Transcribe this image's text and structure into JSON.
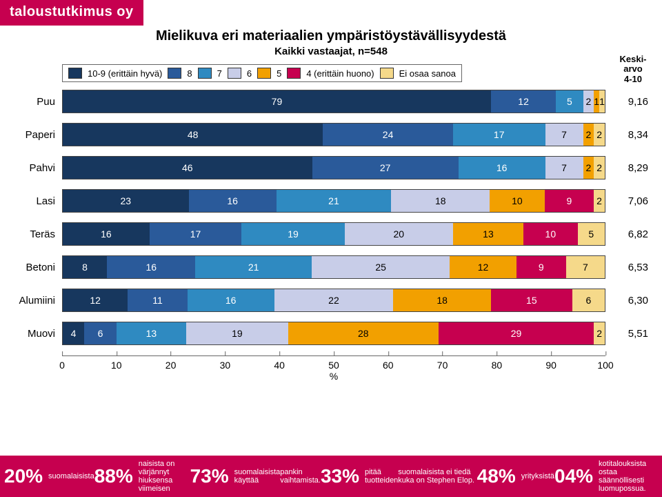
{
  "logo": "taloustutkimus oy",
  "title": "Mielikuva eri materiaalien ympäristöystävällisyydestä",
  "subtitle": "Kaikki vastaajat, n=548",
  "legend": {
    "items": [
      {
        "label": "10-9 (erittäin hyvä)",
        "color": "#17375e"
      },
      {
        "label": "8",
        "color": "#2a5a9a"
      },
      {
        "label": "7",
        "color": "#2f8ac1"
      },
      {
        "label": "6",
        "color": "#c8cde8"
      },
      {
        "label": "5",
        "color": "#f2a000"
      },
      {
        "label": "4 (erittäin huono)",
        "color": "#c6004f"
      },
      {
        "label": "Ei osaa sanoa",
        "color": "#f5d98a"
      }
    ],
    "avg_header": "Keski-\narvo\n4-10"
  },
  "x_axis": {
    "min": 0,
    "max": 100,
    "step": 10,
    "title": "%"
  },
  "rows": [
    {
      "label": "Puu",
      "avg": "9,16",
      "segments": [
        {
          "v": 79,
          "c": "#17375e",
          "t": "light"
        },
        {
          "v": 12,
          "c": "#2a5a9a",
          "t": "light"
        },
        {
          "v": 5,
          "c": "#2f8ac1",
          "t": "light"
        },
        {
          "v": 2,
          "c": "#c8cde8",
          "t": "dark",
          "show": "2"
        },
        {
          "v": 1,
          "c": "#f2a000",
          "t": "dark",
          "show": "1"
        },
        {
          "v": 1,
          "c": "#f5d98a",
          "t": "dark",
          "show": "1"
        }
      ]
    },
    {
      "label": "Paperi",
      "avg": "8,34",
      "segments": [
        {
          "v": 48,
          "c": "#17375e",
          "t": "light"
        },
        {
          "v": 24,
          "c": "#2a5a9a",
          "t": "light"
        },
        {
          "v": 17,
          "c": "#2f8ac1",
          "t": "light"
        },
        {
          "v": 7,
          "c": "#c8cde8",
          "t": "dark"
        },
        {
          "v": 2,
          "c": "#f2a000",
          "t": "dark"
        },
        {
          "v": 2,
          "c": "#f5d98a",
          "t": "dark"
        }
      ]
    },
    {
      "label": "Pahvi",
      "avg": "8,29",
      "segments": [
        {
          "v": 46,
          "c": "#17375e",
          "t": "light"
        },
        {
          "v": 27,
          "c": "#2a5a9a",
          "t": "light"
        },
        {
          "v": 16,
          "c": "#2f8ac1",
          "t": "light"
        },
        {
          "v": 7,
          "c": "#c8cde8",
          "t": "dark"
        },
        {
          "v": 2,
          "c": "#f2a000",
          "t": "dark"
        },
        {
          "v": 2,
          "c": "#f5d98a",
          "t": "dark"
        }
      ]
    },
    {
      "label": "Lasi",
      "avg": "7,06",
      "segments": [
        {
          "v": 23,
          "c": "#17375e",
          "t": "light"
        },
        {
          "v": 16,
          "c": "#2a5a9a",
          "t": "light"
        },
        {
          "v": 21,
          "c": "#2f8ac1",
          "t": "light"
        },
        {
          "v": 18,
          "c": "#c8cde8",
          "t": "dark"
        },
        {
          "v": 10,
          "c": "#f2a000",
          "t": "dark"
        },
        {
          "v": 9,
          "c": "#c6004f",
          "t": "light"
        },
        {
          "v": 2,
          "c": "#f5d98a",
          "t": "dark"
        }
      ]
    },
    {
      "label": "Teräs",
      "avg": "6,82",
      "segments": [
        {
          "v": 16,
          "c": "#17375e",
          "t": "light"
        },
        {
          "v": 17,
          "c": "#2a5a9a",
          "t": "light"
        },
        {
          "v": 19,
          "c": "#2f8ac1",
          "t": "light"
        },
        {
          "v": 20,
          "c": "#c8cde8",
          "t": "dark"
        },
        {
          "v": 13,
          "c": "#f2a000",
          "t": "dark"
        },
        {
          "v": 10,
          "c": "#c6004f",
          "t": "light"
        },
        {
          "v": 5,
          "c": "#f5d98a",
          "t": "dark"
        }
      ]
    },
    {
      "label": "Betoni",
      "avg": "6,53",
      "segments": [
        {
          "v": 8,
          "c": "#17375e",
          "t": "light"
        },
        {
          "v": 16,
          "c": "#2a5a9a",
          "t": "light"
        },
        {
          "v": 21,
          "c": "#2f8ac1",
          "t": "light"
        },
        {
          "v": 25,
          "c": "#c8cde8",
          "t": "dark"
        },
        {
          "v": 12,
          "c": "#f2a000",
          "t": "dark"
        },
        {
          "v": 9,
          "c": "#c6004f",
          "t": "light"
        },
        {
          "v": 7,
          "c": "#f5d98a",
          "t": "dark"
        }
      ]
    },
    {
      "label": "Alumiini",
      "avg": "6,30",
      "segments": [
        {
          "v": 12,
          "c": "#17375e",
          "t": "light"
        },
        {
          "v": 11,
          "c": "#2a5a9a",
          "t": "light"
        },
        {
          "v": 16,
          "c": "#2f8ac1",
          "t": "light"
        },
        {
          "v": 22,
          "c": "#c8cde8",
          "t": "dark"
        },
        {
          "v": 18,
          "c": "#f2a000",
          "t": "dark"
        },
        {
          "v": 15,
          "c": "#c6004f",
          "t": "light"
        },
        {
          "v": 6,
          "c": "#f5d98a",
          "t": "dark"
        }
      ]
    },
    {
      "label": "Muovi",
      "avg": "5,51",
      "segments": [
        {
          "v": 4,
          "c": "#17375e",
          "t": "light"
        },
        {
          "v": 6,
          "c": "#2a5a9a",
          "t": "light"
        },
        {
          "v": 13,
          "c": "#2f8ac1",
          "t": "light"
        },
        {
          "v": 19,
          "c": "#c8cde8",
          "t": "dark"
        },
        {
          "v": 28,
          "c": "#f2a000",
          "t": "dark"
        },
        {
          "v": 29,
          "c": "#c6004f",
          "t": "light"
        },
        {
          "v": 2,
          "c": "#f5d98a",
          "t": "dark"
        }
      ]
    }
  ],
  "footer": [
    {
      "big": "20%",
      "small": "suomalaisista"
    },
    {
      "big": "88%",
      "small": "naisista on värjännyt hiuksensa viimeisen"
    },
    {
      "big": "73%",
      "small": "suomalaisista käyttää"
    },
    {
      "big": "",
      "small": "pankin vaihtamista."
    },
    {
      "big": "33%",
      "small": "pitää tuotteiden"
    },
    {
      "big": "",
      "small": "suomalaisista ei tiedä kuka on Stephen Elop."
    },
    {
      "big": "48%",
      "small": "yrityksistä"
    },
    {
      "big": "04%",
      "small": "kotitalouksista ostaa säännöllisesti luomupossua."
    }
  ]
}
